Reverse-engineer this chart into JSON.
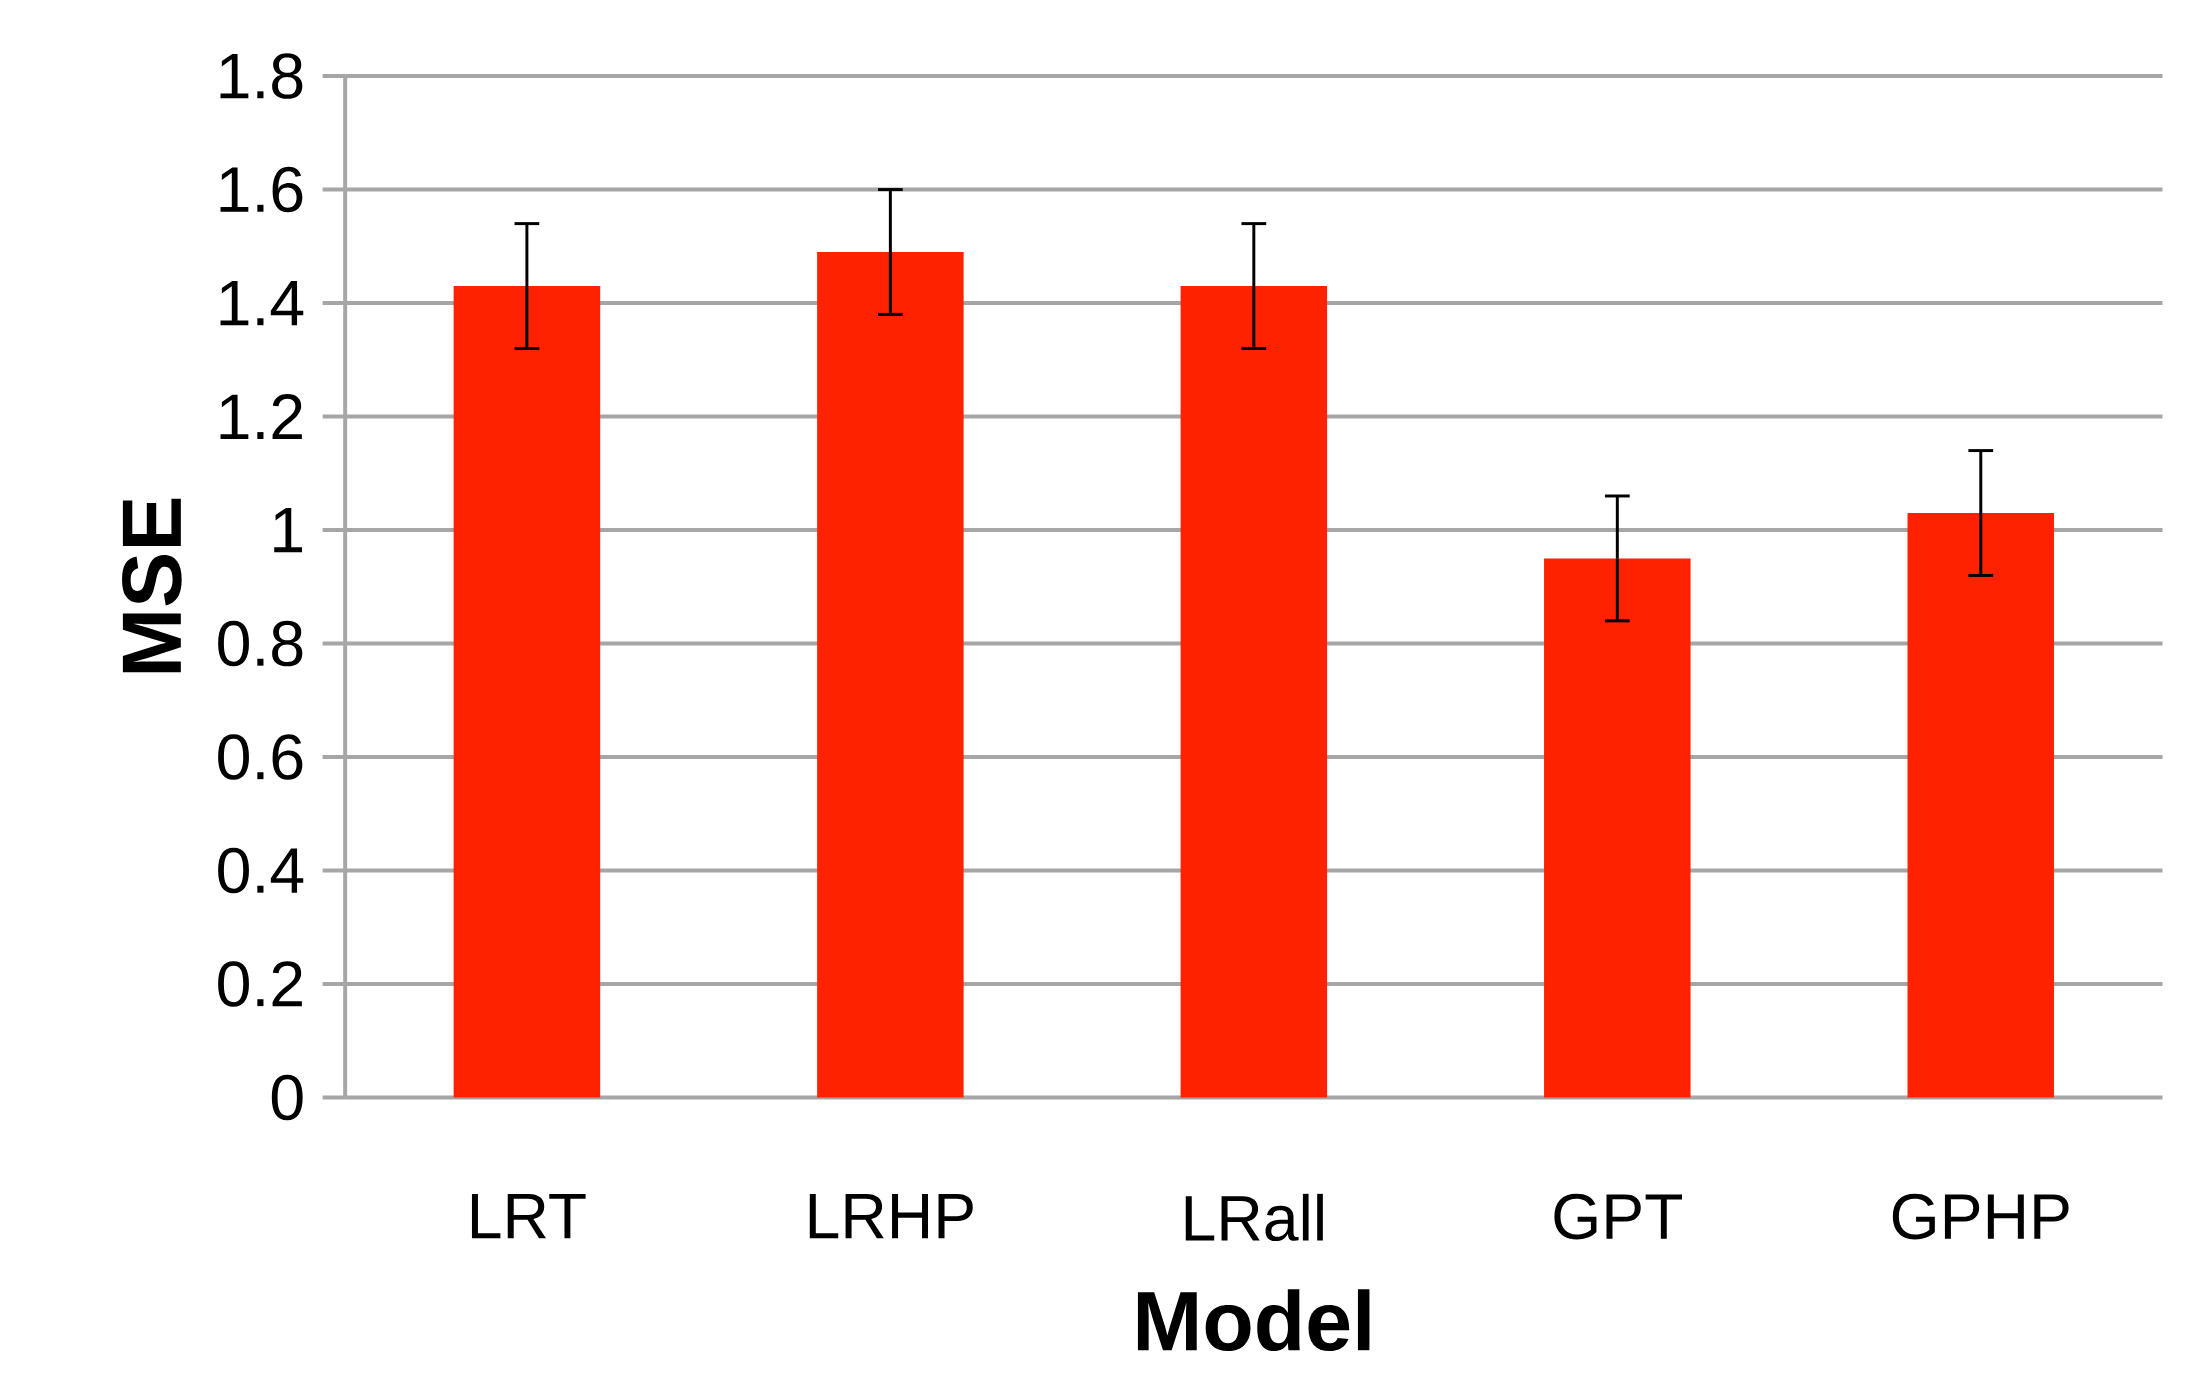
{
  "chart_data": {
    "type": "bar",
    "xlabel": "Model",
    "ylabel": "MSE",
    "categories": [
      "LRT",
      "LRHP",
      "LRall",
      "GPT",
      "GPHP"
    ],
    "values": [
      1.43,
      1.49,
      1.43,
      0.95,
      1.03
    ],
    "errors": [
      0.11,
      0.11,
      0.11,
      0.11,
      0.11
    ],
    "color": "#ff2200",
    "ylim": [
      0,
      1.8
    ],
    "yticks": [
      {
        "value": 0,
        "label": "0"
      },
      0.2,
      0.4,
      0.6,
      0.8,
      {
        "value": 1,
        "label": "1"
      },
      1.2,
      1.4,
      1.6,
      1.8
    ],
    "grid": "y"
  }
}
